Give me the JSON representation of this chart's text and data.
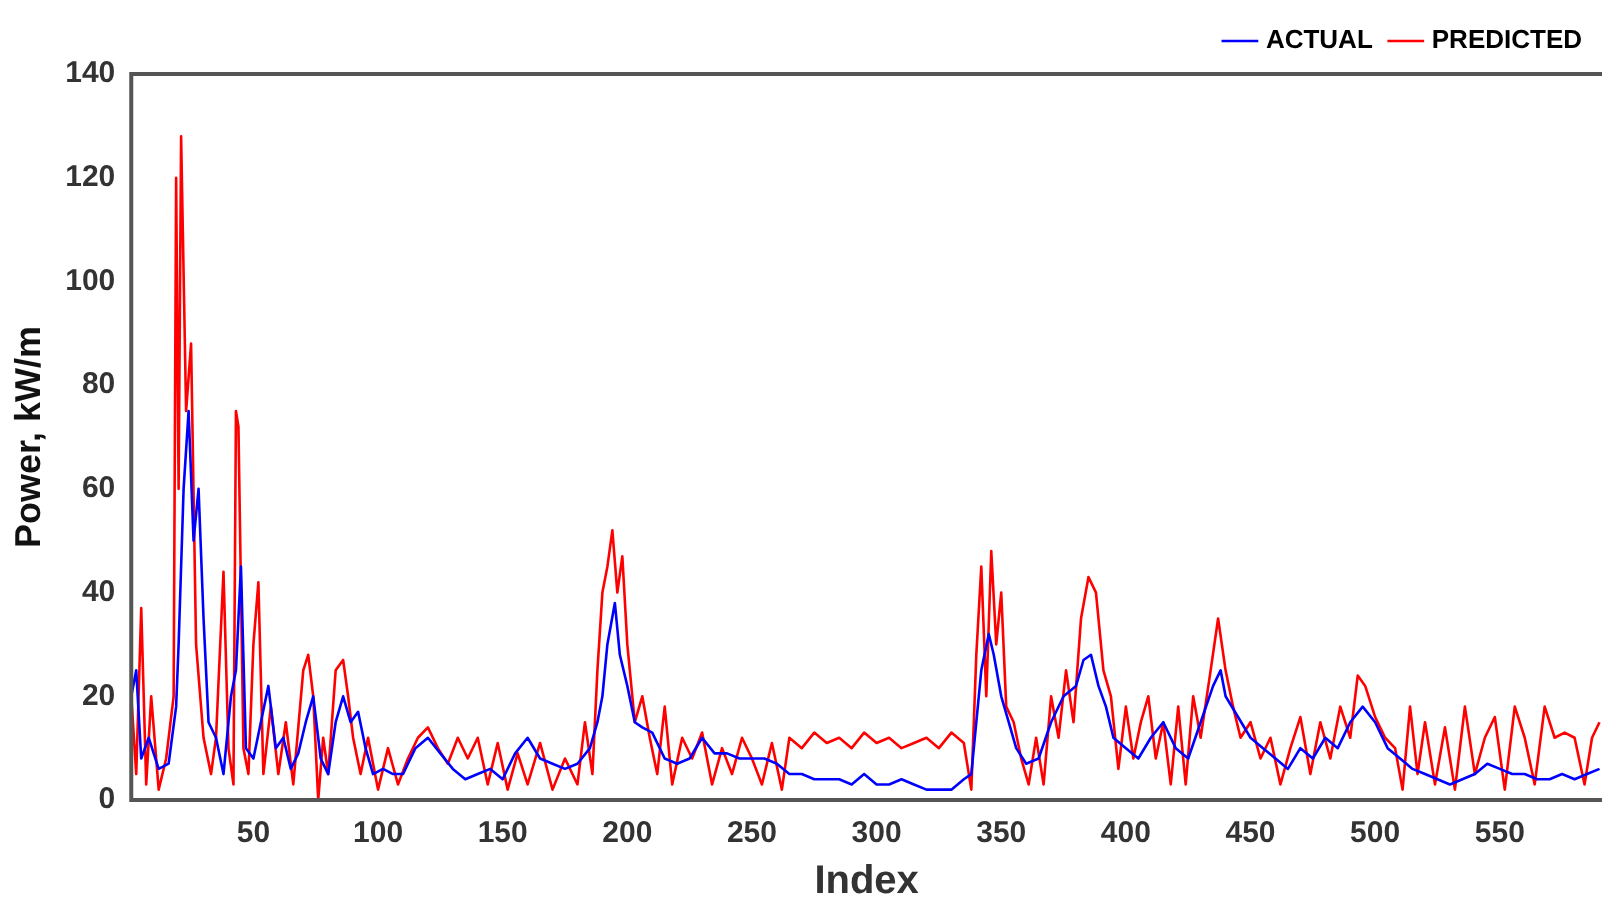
{
  "chart_data": {
    "type": "line",
    "xlabel": "Index",
    "ylabel": "Power, kW/m",
    "xlim": [
      1,
      591
    ],
    "xticks": [
      50,
      100,
      150,
      200,
      250,
      300,
      350,
      400,
      450,
      500,
      550
    ],
    "ylim": [
      0,
      140
    ],
    "yticks": [
      0,
      20,
      40,
      60,
      80,
      100,
      120,
      140
    ],
    "grid": false,
    "legend": "top right",
    "marker": "none",
    "line_style": "solid",
    "series": [
      {
        "name": "ACTUAL",
        "color": "#0000ff",
        "x": [
          1,
          3,
          5,
          8,
          12,
          16,
          19,
          20,
          22,
          24,
          26,
          28,
          30,
          32,
          35,
          38,
          41,
          43,
          45,
          47,
          50,
          53,
          56,
          59,
          62,
          65,
          68,
          71,
          74,
          77,
          80,
          83,
          86,
          89,
          92,
          95,
          98,
          102,
          106,
          110,
          115,
          120,
          125,
          130,
          135,
          140,
          145,
          150,
          155,
          160,
          165,
          170,
          175,
          180,
          185,
          188,
          190,
          192,
          195,
          197,
          200,
          203,
          206,
          210,
          215,
          220,
          225,
          230,
          235,
          240,
          245,
          250,
          255,
          260,
          265,
          270,
          275,
          280,
          285,
          290,
          295,
          300,
          305,
          310,
          315,
          320,
          325,
          330,
          335,
          338,
          340,
          342,
          345,
          347,
          350,
          353,
          356,
          360,
          365,
          370,
          375,
          380,
          383,
          386,
          389,
          392,
          395,
          400,
          405,
          410,
          415,
          420,
          425,
          430,
          435,
          438,
          440,
          445,
          450,
          455,
          460,
          465,
          470,
          475,
          480,
          485,
          490,
          495,
          500,
          505,
          510,
          515,
          520,
          525,
          530,
          535,
          540,
          545,
          550,
          555,
          560,
          565,
          570,
          575,
          580,
          585,
          590
        ],
        "values": [
          20,
          25,
          8,
          12,
          6,
          7,
          18,
          30,
          60,
          75,
          50,
          60,
          35,
          15,
          12,
          5,
          20,
          25,
          45,
          10,
          8,
          15,
          22,
          10,
          12,
          6,
          9,
          15,
          20,
          8,
          5,
          15,
          20,
          15,
          17,
          10,
          5,
          6,
          5,
          5,
          10,
          12,
          9,
          6,
          4,
          5,
          6,
          4,
          9,
          12,
          8,
          7,
          6,
          7,
          10,
          15,
          20,
          30,
          38,
          28,
          22,
          15,
          14,
          13,
          8,
          7,
          8,
          12,
          9,
          9,
          8,
          8,
          8,
          7,
          5,
          5,
          4,
          4,
          4,
          3,
          5,
          3,
          3,
          4,
          3,
          2,
          2,
          2,
          4,
          5,
          15,
          25,
          32,
          28,
          20,
          15,
          10,
          7,
          8,
          15,
          20,
          22,
          27,
          28,
          22,
          18,
          12,
          10,
          8,
          12,
          15,
          10,
          8,
          15,
          22,
          25,
          20,
          16,
          12,
          10,
          8,
          6,
          10,
          8,
          12,
          10,
          15,
          18,
          15,
          10,
          8,
          6,
          5,
          4,
          3,
          4,
          5,
          7,
          6,
          5,
          5,
          4,
          4,
          5,
          4,
          5,
          6
        ]
      },
      {
        "name": "PREDICTED",
        "color": "#ff0000",
        "x": [
          1,
          3,
          5,
          7,
          9,
          12,
          15,
          18,
          19,
          20,
          21,
          23,
          25,
          27,
          30,
          33,
          35,
          38,
          40,
          42,
          43,
          44,
          46,
          48,
          50,
          52,
          54,
          57,
          60,
          63,
          66,
          70,
          72,
          74,
          76,
          78,
          80,
          83,
          86,
          88,
          90,
          93,
          96,
          100,
          104,
          108,
          112,
          116,
          120,
          124,
          128,
          132,
          136,
          140,
          144,
          148,
          152,
          156,
          160,
          165,
          170,
          175,
          180,
          183,
          186,
          188,
          190,
          192,
          194,
          196,
          198,
          200,
          203,
          206,
          209,
          212,
          215,
          218,
          222,
          226,
          230,
          234,
          238,
          242,
          246,
          250,
          254,
          258,
          262,
          265,
          270,
          275,
          280,
          285,
          290,
          295,
          300,
          305,
          310,
          315,
          320,
          325,
          330,
          335,
          338,
          340,
          342,
          344,
          346,
          348,
          350,
          352,
          355,
          358,
          361,
          364,
          367,
          370,
          373,
          376,
          379,
          382,
          385,
          388,
          391,
          394,
          397,
          400,
          403,
          406,
          409,
          412,
          415,
          418,
          421,
          424,
          427,
          430,
          434,
          437,
          440,
          443,
          446,
          450,
          454,
          458,
          462,
          466,
          470,
          474,
          478,
          482,
          486,
          490,
          493,
          496,
          500,
          504,
          508,
          511,
          514,
          517,
          520,
          524,
          528,
          532,
          536,
          540,
          544,
          548,
          552,
          556,
          560,
          564,
          568,
          572,
          576,
          580,
          584,
          587,
          590
        ],
        "values": [
          20,
          5,
          37,
          3,
          20,
          2,
          8,
          20,
          120,
          60,
          128,
          75,
          88,
          30,
          12,
          5,
          12,
          44,
          10,
          3,
          75,
          72,
          10,
          5,
          30,
          42,
          5,
          18,
          5,
          15,
          3,
          25,
          28,
          20,
          0,
          12,
          5,
          25,
          27,
          20,
          12,
          5,
          12,
          2,
          10,
          3,
          8,
          12,
          14,
          10,
          7,
          12,
          8,
          12,
          3,
          11,
          2,
          9,
          3,
          11,
          2,
          8,
          3,
          15,
          5,
          25,
          40,
          45,
          52,
          40,
          47,
          30,
          15,
          20,
          12,
          5,
          18,
          3,
          12,
          8,
          13,
          3,
          10,
          5,
          12,
          8,
          3,
          11,
          2,
          12,
          10,
          13,
          11,
          12,
          10,
          13,
          11,
          12,
          10,
          11,
          12,
          10,
          13,
          11,
          2,
          28,
          45,
          20,
          48,
          30,
          40,
          18,
          15,
          8,
          3,
          12,
          3,
          20,
          12,
          25,
          15,
          35,
          43,
          40,
          25,
          20,
          6,
          18,
          8,
          15,
          20,
          8,
          15,
          3,
          18,
          3,
          20,
          12,
          25,
          35,
          25,
          18,
          12,
          15,
          8,
          12,
          3,
          10,
          16,
          5,
          15,
          8,
          18,
          12,
          24,
          22,
          16,
          12,
          10,
          2,
          18,
          5,
          15,
          3,
          14,
          2,
          18,
          5,
          12,
          16,
          2,
          18,
          12,
          3,
          18,
          12,
          13,
          12,
          3,
          12,
          15
        ]
      }
    ]
  }
}
